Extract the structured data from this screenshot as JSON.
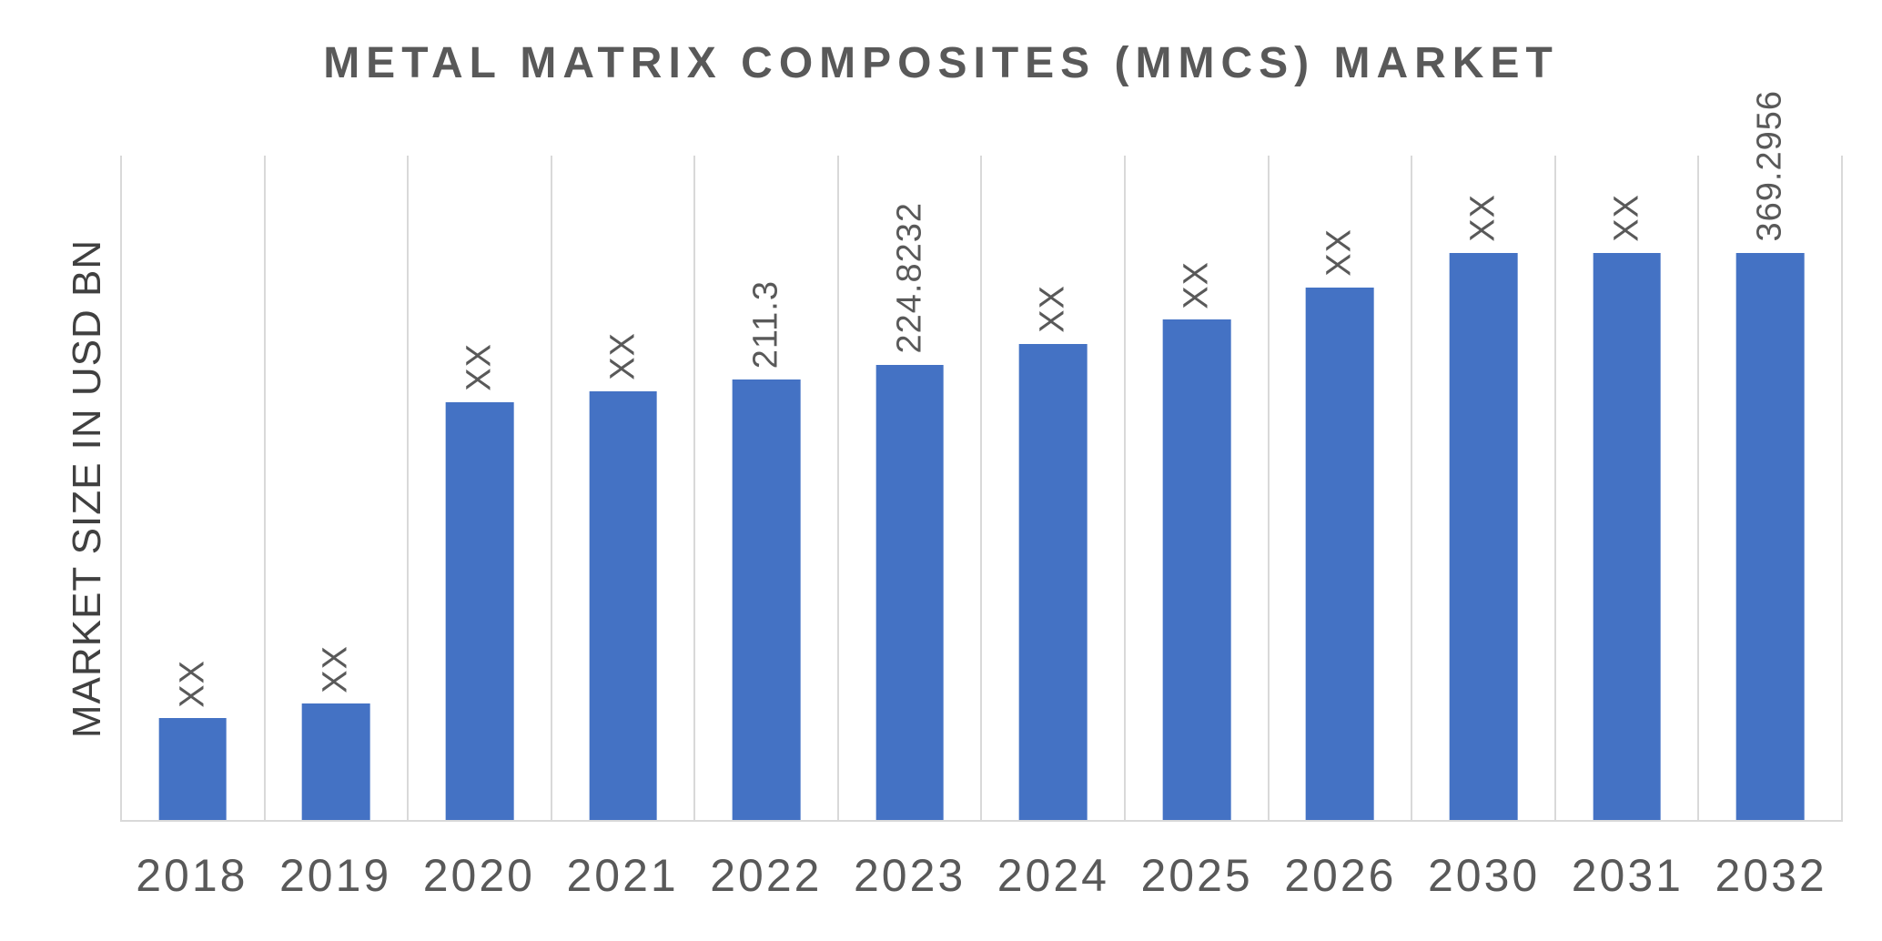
{
  "chart_data": {
    "type": "bar",
    "title": "METAL MATRIX COMPOSITES (MMCS) MARKET",
    "xlabel": "",
    "ylabel": "MARKET SIZE IN USD BN",
    "categories": [
      "2018",
      "2019",
      "2020",
      "2021",
      "2022",
      "2023",
      "2024",
      "2025",
      "2026",
      "2030",
      "2031",
      "2032"
    ],
    "bar_labels": [
      "XX",
      "XX",
      "XX",
      "XX",
      "211.3",
      "224.8232",
      "XX",
      "XX",
      "XX",
      "XX",
      "XX",
      "369.2956"
    ],
    "known_values": {
      "2022": 211.3,
      "2023": 224.8232,
      "2032": 369.2956
    },
    "bar_heights_pct": [
      15.3,
      17.5,
      62.9,
      64.5,
      66.3,
      68.5,
      71.7,
      75.3,
      80.2,
      85.4,
      85.4,
      85.4
    ],
    "bar_color": "#4472c4",
    "grid_color": "#d9d9d9",
    "axis_color": "#d9d9d9",
    "label_color": "#595959",
    "legend": "none",
    "grid": "vertical-only"
  }
}
